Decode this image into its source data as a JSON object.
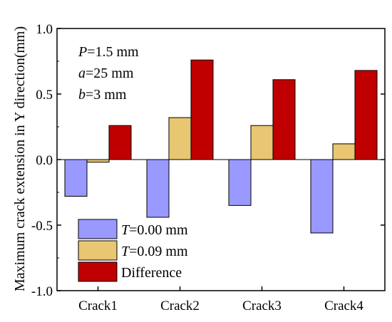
{
  "chart_data": {
    "type": "bar",
    "categories": [
      "Crack1",
      "Crack2",
      "Crack3",
      "Crack4"
    ],
    "series": [
      {
        "name_prefix": "T",
        "name_suffix": "=0.00 mm",
        "color": "#9999ff",
        "values": [
          -0.28,
          -0.44,
          -0.35,
          -0.56
        ]
      },
      {
        "name_prefix": "T",
        "name_suffix": "=0.09 mm",
        "color": "#e8c672",
        "values": [
          -0.02,
          0.32,
          0.26,
          0.12
        ]
      },
      {
        "name_prefix": "",
        "name_suffix": "Difference",
        "color": "#c00000",
        "values": [
          0.26,
          0.76,
          0.61,
          0.68
        ]
      }
    ],
    "ylabel": "Maximum crack extension in Y direction(mm)",
    "ylim": [
      -1.0,
      1.0
    ],
    "yticks": [
      "-1.0",
      "-0.5",
      "0.0",
      "0.5",
      "1.0"
    ],
    "ytick_values": [
      -1.0,
      -0.5,
      0.0,
      0.5,
      1.0
    ],
    "legend_position": "lower-left",
    "grid": false,
    "annotations": [
      {
        "italic": "P",
        "rest": "=1.5 mm"
      },
      {
        "italic": "a",
        "rest": "=25 mm"
      },
      {
        "italic": "b",
        "rest": "=3 mm"
      }
    ]
  }
}
